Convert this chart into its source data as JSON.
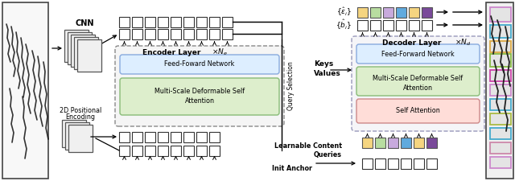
{
  "bg_color": "#ffffff",
  "ffn_color_enc": "#ddeeff",
  "ffn_border_enc": "#88aadd",
  "ms_color_enc": "#ddeecc",
  "ms_border_enc": "#88bb77",
  "ffn_color_dec": "#ddeeff",
  "ffn_border_dec": "#88aadd",
  "ms_color_dec": "#ddeecc",
  "ms_border_dec": "#88bb77",
  "sa_color_dec": "#ffddd8",
  "sa_border_dec": "#cc8888",
  "query_colors": [
    "#f5d580",
    "#b8dda0",
    "#c8aadd",
    "#60aade",
    "#f5d580",
    "#7a4a9a"
  ],
  "enc_label": "Encoder Layer",
  "enc_ne": "\\times N_e",
  "dec_label": "Decoder Layer",
  "dec_nd": "\\times N_d",
  "ffn_enc_text": "Feed-Foward Network",
  "ms_enc_text1": "Multi-Scale Deformable Self",
  "ms_enc_text2": "Attention",
  "ffn_dec_text": "Feed-Forward Network",
  "ms_dec_text1": "Multi-Scale Deformable Self",
  "ms_dec_text2": "Attention",
  "sa_dec_text": "Self Attention",
  "keys_text": "Keys",
  "values_text": "Values",
  "qs_text": "Query Selection",
  "lq_text1": "Learnable Content",
  "lq_text2": "Queries",
  "ia_text": "Init Anchor",
  "cnn_text": "CNN",
  "pe_text1": "2D Positional",
  "pe_text2": "Encoding",
  "eps_label": "\\{\\hat{\\varepsilon}_i\\}",
  "b_label": "\\{\\hat{b}_i\\}"
}
